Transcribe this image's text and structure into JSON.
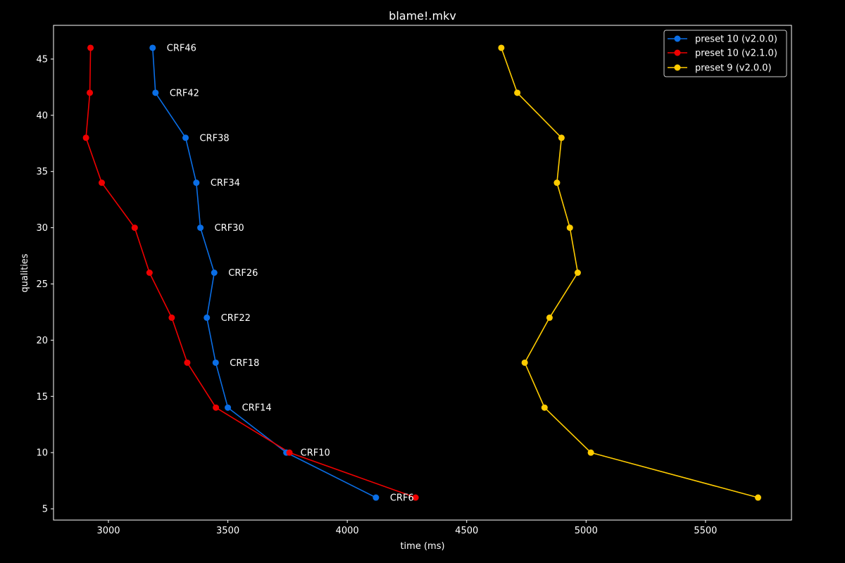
{
  "chart_data": {
    "type": "line",
    "title": "blame!.mkv",
    "xlabel": "time (ms)",
    "ylabel": "qualities",
    "xlim": [
      2770,
      5860
    ],
    "ylim": [
      4,
      48
    ],
    "xticks": [
      3000,
      3500,
      4000,
      4500,
      5000,
      5500
    ],
    "yticks": [
      5,
      10,
      15,
      20,
      25,
      30,
      35,
      40,
      45
    ],
    "grid": false,
    "legend_position": "top-right",
    "qualities": [
      46,
      42,
      38,
      34,
      30,
      26,
      22,
      18,
      14,
      10,
      6
    ],
    "annotations": [
      "CRF46",
      "CRF42",
      "CRF38",
      "CRF34",
      "CRF30",
      "CRF26",
      "CRF22",
      "CRF18",
      "CRF14",
      "CRF10",
      "CRF6"
    ],
    "annotation_series": 0,
    "series": [
      {
        "name": "preset 10 (v2.0.0)",
        "color": "#0a6ee6",
        "x": [
          3185,
          3197,
          3323,
          3368,
          3385,
          3443,
          3412,
          3449,
          3500,
          3745,
          4120
        ]
      },
      {
        "name": "preset 10 (v2.1.0)",
        "color": "#ee0000",
        "x": [
          2925,
          2922,
          2906,
          2972,
          3110,
          3172,
          3265,
          3330,
          3450,
          3758,
          4286
        ]
      },
      {
        "name": "preset 9 (v2.0.0)",
        "color": "#ffcc00",
        "x": [
          4645,
          4712,
          4897,
          4878,
          4932,
          4965,
          4847,
          4743,
          4826,
          5020,
          5720
        ]
      }
    ]
  }
}
